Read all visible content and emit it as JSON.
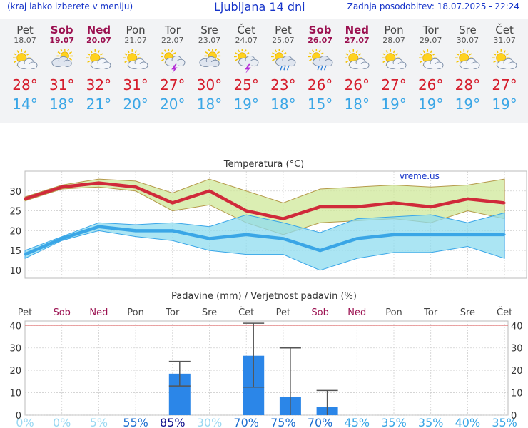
{
  "header": {
    "menu_hint": "(kraj lahko izberete v meniju)",
    "title": "Ljubljana 14 dni",
    "updated": "Zadnja posodobitev: 18.07.2025 - 22:24"
  },
  "colors": {
    "header_text": "#1533c9",
    "high_temp": "#d51c2b",
    "low_temp": "#3aa6e6",
    "weekend": "#9b1050",
    "precip_bar": "#2b86e8"
  },
  "days": [
    {
      "name": "Pet",
      "date": "18.07",
      "weekend": false,
      "icon": "partly-cloudy-sun-icon",
      "high": "28°",
      "low": "14°"
    },
    {
      "name": "Sob",
      "date": "19.07",
      "weekend": true,
      "icon": "cloudy-sun-icon",
      "high": "31°",
      "low": "18°"
    },
    {
      "name": "Ned",
      "date": "20.07",
      "weekend": true,
      "icon": "partly-cloudy-sun-icon",
      "high": "32°",
      "low": "21°"
    },
    {
      "name": "Pon",
      "date": "21.07",
      "weekend": false,
      "icon": "partly-cloudy-sun-icon",
      "high": "31°",
      "low": "20°"
    },
    {
      "name": "Tor",
      "date": "22.07",
      "weekend": false,
      "icon": "thunderstorm-icon",
      "high": "27°",
      "low": "20°"
    },
    {
      "name": "Sre",
      "date": "23.07",
      "weekend": false,
      "icon": "cloudy-sun-icon",
      "high": "30°",
      "low": "18°"
    },
    {
      "name": "Čet",
      "date": "24.07",
      "weekend": false,
      "icon": "thunderstorm-icon",
      "high": "25°",
      "low": "19°"
    },
    {
      "name": "Pet",
      "date": "25.07",
      "weekend": false,
      "icon": "rain-shower-icon",
      "high": "23°",
      "low": "18°"
    },
    {
      "name": "Sob",
      "date": "26.07",
      "weekend": true,
      "icon": "rain-shower-icon",
      "high": "26°",
      "low": "15°"
    },
    {
      "name": "Ned",
      "date": "27.07",
      "weekend": true,
      "icon": "partly-cloudy-sun-icon",
      "high": "26°",
      "low": "18°"
    },
    {
      "name": "Pon",
      "date": "28.07",
      "weekend": false,
      "icon": "partly-cloudy-sun-icon",
      "high": "27°",
      "low": "19°"
    },
    {
      "name": "Tor",
      "date": "29.07",
      "weekend": false,
      "icon": "partly-cloudy-sun-icon",
      "high": "26°",
      "low": "19°"
    },
    {
      "name": "Sre",
      "date": "30.07",
      "weekend": false,
      "icon": "partly-cloudy-sun-icon",
      "high": "28°",
      "low": "19°"
    },
    {
      "name": "Čet",
      "date": "31.07",
      "weekend": false,
      "icon": "partly-cloudy-sun-icon",
      "high": "27°",
      "low": "19°"
    }
  ],
  "chart_data": [
    {
      "type": "line",
      "title": "Temperatura (°C)",
      "watermark": "vreme.us",
      "ylim": [
        8,
        35
      ],
      "yticks": [
        10,
        15,
        20,
        25,
        30
      ],
      "grid": true,
      "x": [
        "Pet",
        "Sob",
        "Ned",
        "Pon",
        "Tor",
        "Sre",
        "Čet",
        "Pet",
        "Sob",
        "Ned",
        "Pon",
        "Tor",
        "Sre",
        "Čet"
      ],
      "series": [
        {
          "role": "max",
          "values": [
            28,
            31,
            32,
            31,
            27,
            30,
            25,
            23,
            26,
            26,
            27,
            26,
            28,
            27
          ]
        },
        {
          "role": "max_band_upper",
          "values": [
            28.5,
            31.5,
            33,
            32.5,
            29.5,
            33,
            30,
            27,
            30.5,
            31,
            31.5,
            31,
            31.5,
            33
          ]
        },
        {
          "role": "max_band_lower",
          "values": [
            27.5,
            30.5,
            31,
            30,
            25,
            26.5,
            22,
            19,
            22,
            22.5,
            23,
            22,
            25,
            23
          ]
        },
        {
          "role": "min",
          "values": [
            14,
            18,
            21,
            20,
            20,
            18,
            19,
            18,
            15,
            18,
            19,
            19,
            19,
            19
          ]
        },
        {
          "role": "min_band_upper",
          "values": [
            15,
            18.5,
            22,
            21.5,
            22,
            21,
            24,
            22,
            19.5,
            23,
            23.5,
            24,
            22,
            24.5
          ]
        },
        {
          "role": "min_band_lower",
          "values": [
            13,
            17.5,
            20,
            18.5,
            17.5,
            15,
            14,
            14,
            10,
            13,
            14.5,
            14.5,
            16,
            13
          ]
        }
      ]
    },
    {
      "type": "bar",
      "title": "Padavine (mm) / Verjetnost padavin (%)",
      "ylim": [
        0,
        42
      ],
      "yticks": [
        0,
        10,
        20,
        30,
        40
      ],
      "grid": true,
      "categories": [
        "Pet",
        "Sob",
        "Ned",
        "Pon",
        "Tor",
        "Sre",
        "Čet",
        "Pet",
        "Sob",
        "Ned",
        "Pon",
        "Tor",
        "Sre",
        "Čet"
      ],
      "values": [
        0,
        0,
        0,
        0,
        18.5,
        0,
        26.5,
        8,
        3.5,
        0,
        0,
        0,
        0,
        0
      ],
      "error_high": [
        null,
        null,
        null,
        null,
        24,
        null,
        41,
        30,
        11,
        null,
        null,
        null,
        null,
        null
      ],
      "error_low": [
        null,
        null,
        null,
        null,
        13,
        null,
        12.5,
        0,
        0,
        null,
        null,
        null,
        null,
        null
      ],
      "probability": [
        "0%",
        "0%",
        "5%",
        "55%",
        "85%",
        "30%",
        "70%",
        "75%",
        "70%",
        "45%",
        "35%",
        "35%",
        "40%",
        "35%"
      ],
      "probability_colors": [
        "#9ad8f2",
        "#9ad8f2",
        "#9ad8f2",
        "#1e6fd0",
        "#10108c",
        "#9ad8f2",
        "#1e6fd0",
        "#1e6fd0",
        "#1e6fd0",
        "#3aa6e6",
        "#3aa6e6",
        "#3aa6e6",
        "#3aa6e6",
        "#3aa6e6"
      ]
    }
  ]
}
